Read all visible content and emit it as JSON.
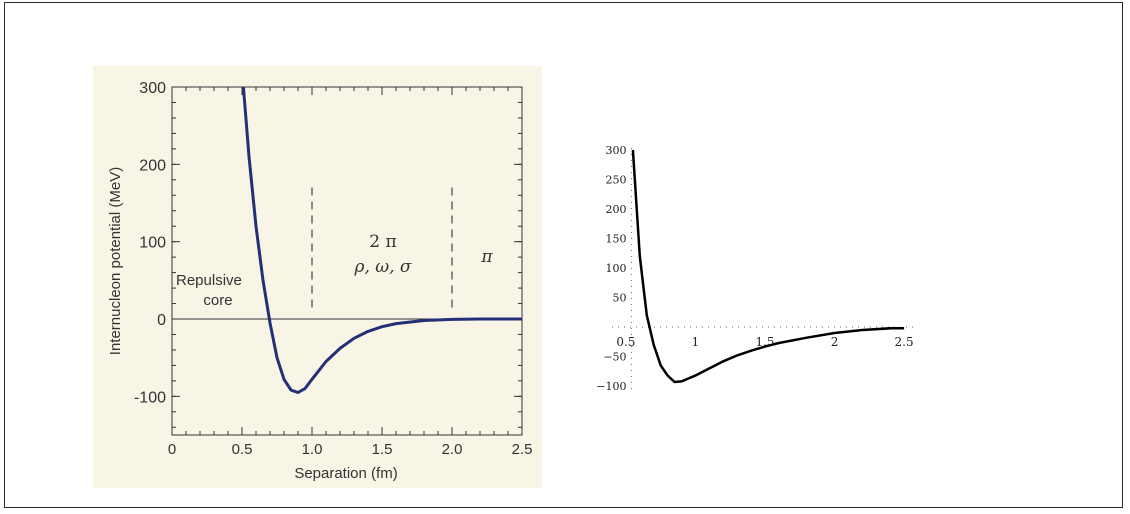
{
  "chart_data": [
    {
      "type": "line",
      "background": "#f8f4e6",
      "line_color": "#233077",
      "xlabel": "Separation (fm)",
      "ylabel": "Internucleon potential (MeV)",
      "xlim": [
        0,
        2.5
      ],
      "ylim": [
        -150,
        300
      ],
      "x_ticks": [
        "0",
        "0.5",
        "1.0",
        "1.5",
        "2.0",
        "2.5"
      ],
      "y_ticks": [
        "300",
        "200",
        "100",
        "0",
        "-100"
      ],
      "series": [
        {
          "x": [
            0.51,
            0.55,
            0.6,
            0.65,
            0.7,
            0.75,
            0.8,
            0.85,
            0.9,
            0.95,
            1.0,
            1.1,
            1.2,
            1.3,
            1.4,
            1.5,
            1.6,
            1.8,
            2.0,
            2.2,
            2.5
          ],
          "y": [
            300,
            210,
            120,
            50,
            -5,
            -50,
            -78,
            -92,
            -95,
            -90,
            -78,
            -55,
            -38,
            -25,
            -16,
            -10,
            -6,
            -2,
            -0.5,
            0,
            0
          ]
        }
      ],
      "dividers_x": [
        1.0,
        2.0
      ],
      "annotations": {
        "core_line1": "Repulsive",
        "core_line2": "core",
        "mid_line1": "2 π",
        "mid_line2": "ρ, ω, σ",
        "right": "π"
      }
    },
    {
      "type": "line",
      "line_color": "#000000",
      "xlim": [
        0.4,
        2.6
      ],
      "ylim": [
        -110,
        300
      ],
      "x_ticks": [
        "0.5",
        "1",
        "1.5",
        "2",
        "2.5"
      ],
      "y_ticks": [
        "300",
        "250",
        "200",
        "150",
        "100",
        "50",
        "−50",
        "−100"
      ],
      "series": [
        {
          "x": [
            0.55,
            0.6,
            0.65,
            0.7,
            0.75,
            0.8,
            0.85,
            0.9,
            1.0,
            1.1,
            1.2,
            1.3,
            1.4,
            1.5,
            1.6,
            1.8,
            2.0,
            2.2,
            2.4,
            2.5
          ],
          "y": [
            300,
            120,
            20,
            -30,
            -65,
            -82,
            -93,
            -92,
            -82,
            -70,
            -58,
            -48,
            -40,
            -33,
            -27,
            -18,
            -10,
            -5,
            -2,
            -2
          ]
        }
      ]
    }
  ]
}
